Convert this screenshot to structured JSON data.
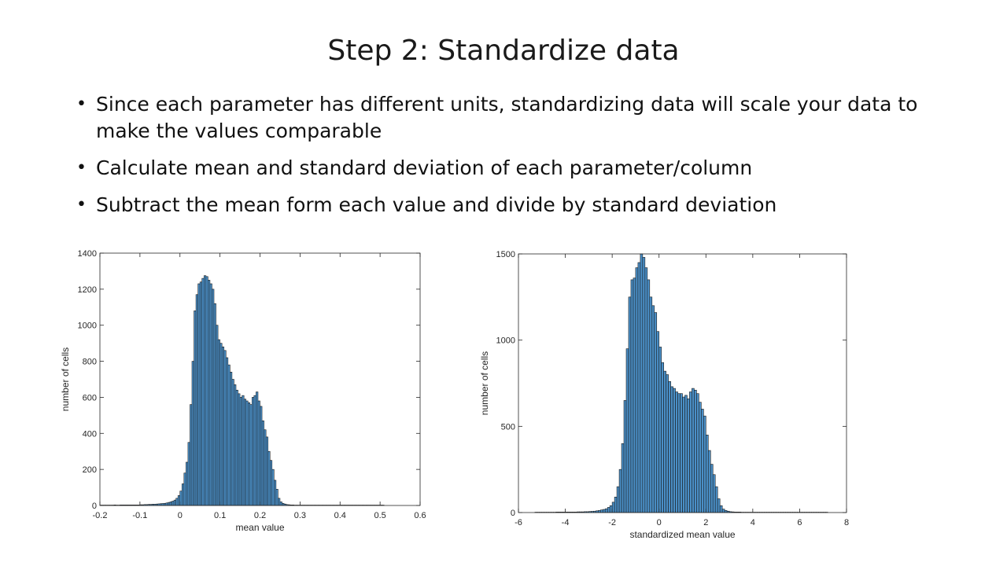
{
  "slide": {
    "title": "Step 2: Standardize data",
    "bullets": [
      "Since each parameter has different units, standardizing data will scale your data to make the values comparable",
      "Calculate mean and standard deviation of each parameter/column",
      "Subtract the mean form each value and divide by standard deviation"
    ]
  },
  "colors": {
    "bar_fill": "#4a8fc7",
    "bar_stroke": "#1a1a1a",
    "axis": "#262626"
  },
  "chart_data": [
    {
      "type": "bar",
      "title": "",
      "xlabel": "mean value",
      "ylabel": "number of cells",
      "xlim": [
        -0.2,
        0.6
      ],
      "ylim": [
        0,
        1400
      ],
      "xticks": [
        -0.2,
        -0.1,
        0,
        0.1,
        0.2,
        0.3,
        0.4,
        0.5,
        0.6
      ],
      "xtick_labels": [
        "-0.2",
        "-0.1",
        "0",
        "0.1",
        "0.2",
        "0.3",
        "0.4",
        "0.5",
        "0.6"
      ],
      "yticks": [
        0,
        200,
        400,
        600,
        800,
        1000,
        1200,
        1400
      ],
      "ytick_labels": [
        "0",
        "200",
        "400",
        "600",
        "800",
        "1000",
        "1200",
        "1400"
      ],
      "grid": false,
      "bin_width": 0.005,
      "bin_centers": [
        -0.1975,
        -0.1925,
        -0.1875,
        -0.1825,
        -0.1775,
        -0.1725,
        -0.1675,
        -0.1625,
        -0.1575,
        -0.1525,
        -0.1475,
        -0.1425,
        -0.1375,
        -0.1325,
        -0.1275,
        -0.1225,
        -0.1175,
        -0.1125,
        -0.1075,
        -0.1025,
        -0.0975,
        -0.0925,
        -0.0875,
        -0.0825,
        -0.0775,
        -0.0725,
        -0.0675,
        -0.0625,
        -0.0575,
        -0.0525,
        -0.0475,
        -0.0425,
        -0.0375,
        -0.0325,
        -0.0275,
        -0.0225,
        -0.0175,
        -0.0125,
        -0.0075,
        -0.0025,
        0.0025,
        0.0075,
        0.0125,
        0.0175,
        0.0225,
        0.0275,
        0.0325,
        0.0375,
        0.0425,
        0.0475,
        0.0525,
        0.0575,
        0.0625,
        0.0675,
        0.0725,
        0.0775,
        0.0825,
        0.0875,
        0.0925,
        0.0975,
        0.1025,
        0.1075,
        0.1125,
        0.1175,
        0.1225,
        0.1275,
        0.1325,
        0.1375,
        0.1425,
        0.1475,
        0.1525,
        0.1575,
        0.1625,
        0.1675,
        0.1725,
        0.1775,
        0.1825,
        0.1875,
        0.1925,
        0.1975,
        0.2025,
        0.2075,
        0.2125,
        0.2175,
        0.2225,
        0.2275,
        0.2325,
        0.2375,
        0.2425,
        0.2475,
        0.2525,
        0.2575,
        0.2625,
        0.2675,
        0.2725,
        0.2775,
        0.2825,
        0.2875,
        0.2925,
        0.2975,
        0.3025,
        0.3075,
        0.3125,
        0.3175,
        0.3225,
        0.3275,
        0.3325,
        0.3375,
        0.3425,
        0.3475,
        0.3525,
        0.3575,
        0.3625,
        0.3675,
        0.3725,
        0.3775,
        0.3825,
        0.3875,
        0.3925,
        0.3975,
        0.4025,
        0.4075,
        0.4125,
        0.4175,
        0.4225,
        0.4275,
        0.4325,
        0.4375,
        0.4425,
        0.4475,
        0.4525,
        0.4575,
        0.4625,
        0.4675,
        0.4725,
        0.4775,
        0.4825,
        0.4875,
        0.4925,
        0.4975,
        0.5025,
        0.5075,
        0.5125,
        0.5175,
        0.5225,
        0.5275
      ],
      "values": [
        2,
        2,
        2,
        2,
        2,
        2,
        2,
        3,
        2,
        2,
        3,
        3,
        3,
        3,
        3,
        3,
        3,
        3,
        3,
        3,
        4,
        4,
        5,
        5,
        6,
        6,
        7,
        7,
        8,
        9,
        10,
        11,
        12,
        14,
        17,
        20,
        24,
        30,
        40,
        55,
        80,
        120,
        180,
        240,
        350,
        560,
        800,
        1080,
        1170,
        1230,
        1240,
        1260,
        1275,
        1270,
        1250,
        1230,
        1200,
        1120,
        1000,
        920,
        900,
        880,
        860,
        820,
        780,
        740,
        700,
        670,
        640,
        620,
        600,
        610,
        590,
        580,
        570,
        560,
        600,
        610,
        630,
        580,
        550,
        470,
        420,
        380,
        300,
        250,
        200,
        140,
        90,
        40,
        20,
        12,
        8,
        5,
        4,
        3,
        3,
        2,
        2,
        2,
        2,
        2,
        2,
        2,
        2,
        2,
        2,
        2,
        2,
        2,
        2,
        2,
        2,
        2,
        2,
        2,
        2,
        2,
        2,
        2,
        2,
        2,
        2,
        2,
        2,
        2,
        2,
        2,
        2,
        2,
        2,
        2,
        2,
        2,
        2,
        2,
        2,
        2,
        2,
        2,
        2,
        2
      ]
    },
    {
      "type": "bar",
      "title": "",
      "xlabel": "standardized mean value",
      "ylabel": "number of cells",
      "xlim": [
        -6,
        8
      ],
      "ylim": [
        0,
        1500
      ],
      "xticks": [
        -6,
        -4,
        -2,
        0,
        2,
        4,
        6,
        8
      ],
      "xtick_labels": [
        "-6",
        "-4",
        "-2",
        "0",
        "2",
        "4",
        "6",
        "8"
      ],
      "yticks": [
        0,
        500,
        1000,
        1500
      ],
      "ytick_labels": [
        "0",
        "500",
        "1000",
        "1500"
      ],
      "grid": false,
      "bin_width": 0.1,
      "bin_centers": [
        -5.25,
        -5.15,
        -5.05,
        -4.95,
        -4.85,
        -4.75,
        -4.65,
        -4.55,
        -4.45,
        -4.35,
        -4.25,
        -4.15,
        -4.05,
        -3.95,
        -3.85,
        -3.75,
        -3.65,
        -3.55,
        -3.45,
        -3.35,
        -3.25,
        -3.15,
        -3.05,
        -2.95,
        -2.85,
        -2.75,
        -2.65,
        -2.55,
        -2.45,
        -2.35,
        -2.25,
        -2.15,
        -2.05,
        -1.95,
        -1.85,
        -1.75,
        -1.65,
        -1.55,
        -1.45,
        -1.35,
        -1.25,
        -1.15,
        -1.05,
        -0.95,
        -0.85,
        -0.75,
        -0.65,
        -0.55,
        -0.45,
        -0.35,
        -0.25,
        -0.15,
        -0.05,
        0.05,
        0.15,
        0.25,
        0.35,
        0.45,
        0.55,
        0.65,
        0.75,
        0.85,
        0.95,
        1.05,
        1.15,
        1.25,
        1.35,
        1.45,
        1.55,
        1.65,
        1.75,
        1.85,
        1.95,
        2.05,
        2.15,
        2.25,
        2.35,
        2.45,
        2.55,
        2.65,
        2.75,
        2.85,
        2.95,
        3.05,
        3.15,
        3.25,
        3.35,
        3.45,
        3.55,
        3.65,
        3.75,
        3.85,
        3.95,
        4.05,
        4.15,
        4.25,
        4.35,
        4.45,
        4.55,
        4.65,
        4.75,
        4.85,
        4.95,
        5.05,
        5.15,
        5.25,
        5.35,
        5.45,
        5.55,
        5.65,
        5.75,
        5.85,
        5.95,
        6.05,
        6.15,
        6.25,
        6.35,
        6.45,
        6.55,
        6.65,
        6.75,
        6.85,
        6.95,
        7.05,
        7.15
      ],
      "values": [
        2,
        2,
        2,
        2,
        2,
        2,
        2,
        2,
        2,
        3,
        3,
        3,
        3,
        3,
        3,
        3,
        3,
        3,
        4,
        4,
        4,
        5,
        5,
        6,
        7,
        8,
        10,
        12,
        15,
        18,
        22,
        30,
        40,
        60,
        90,
        150,
        250,
        400,
        650,
        950,
        1250,
        1350,
        1360,
        1420,
        1450,
        1500,
        1480,
        1420,
        1350,
        1250,
        1200,
        1160,
        1050,
        960,
        870,
        820,
        800,
        760,
        730,
        720,
        700,
        690,
        690,
        670,
        680,
        660,
        700,
        720,
        710,
        690,
        640,
        600,
        560,
        450,
        360,
        280,
        220,
        150,
        80,
        40,
        20,
        12,
        8,
        5,
        4,
        3,
        3,
        3,
        2,
        2,
        2,
        2,
        2,
        2,
        2,
        2,
        2,
        2,
        2,
        2,
        2,
        2,
        2,
        2,
        2,
        2,
        2,
        2,
        2,
        2,
        2,
        2,
        2,
        2,
        2,
        2,
        2,
        2,
        2,
        2,
        2,
        2,
        2,
        2,
        2,
        2,
        2
      ]
    }
  ]
}
